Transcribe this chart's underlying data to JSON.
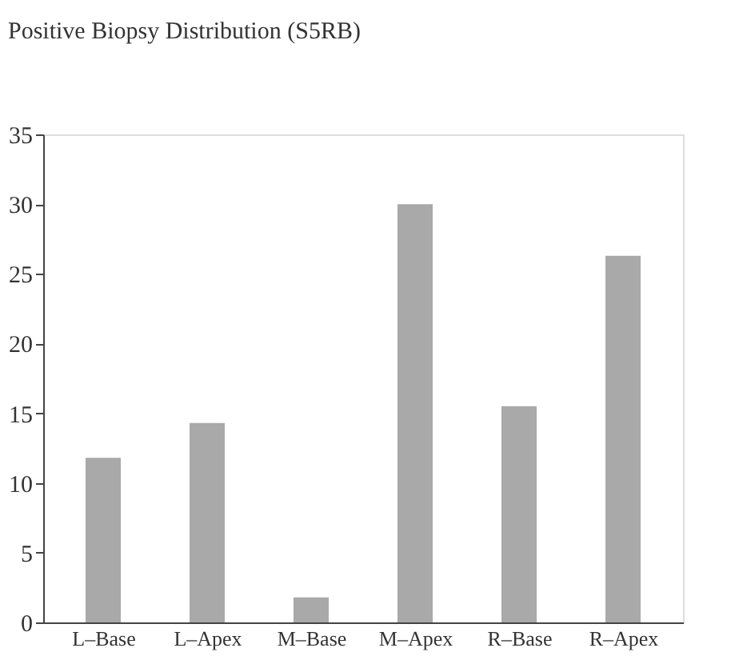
{
  "chart_data": {
    "type": "bar",
    "title": "Positive Biopsy Distribution (S5RB)",
    "categories": [
      "L–Base",
      "L–Apex",
      "M–Base",
      "M–Apex",
      "R–Base",
      "R–Apex"
    ],
    "values": [
      11.8,
      14.3,
      1.8,
      30.0,
      15.5,
      26.3
    ],
    "color": "#a9a9a9",
    "ylim": [
      0,
      35
    ],
    "yticks": [
      0,
      5,
      10,
      15,
      20,
      25,
      30,
      35
    ],
    "grid": false
  }
}
